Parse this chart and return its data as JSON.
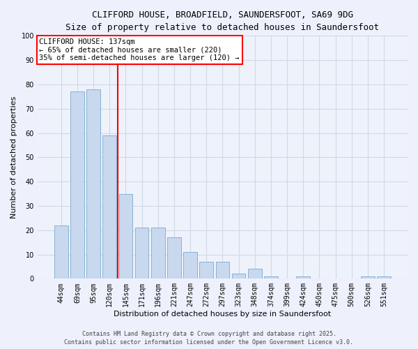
{
  "title1": "CLIFFORD HOUSE, BROADFIELD, SAUNDERSFOOT, SA69 9DG",
  "title2": "Size of property relative to detached houses in Saundersfoot",
  "xlabel": "Distribution of detached houses by size in Saundersfoot",
  "ylabel": "Number of detached properties",
  "categories": [
    "44sqm",
    "69sqm",
    "95sqm",
    "120sqm",
    "145sqm",
    "171sqm",
    "196sqm",
    "221sqm",
    "247sqm",
    "272sqm",
    "297sqm",
    "323sqm",
    "348sqm",
    "374sqm",
    "399sqm",
    "424sqm",
    "450sqm",
    "475sqm",
    "500sqm",
    "526sqm",
    "551sqm"
  ],
  "values": [
    22,
    77,
    78,
    59,
    35,
    21,
    21,
    17,
    11,
    7,
    7,
    2,
    4,
    1,
    0,
    1,
    0,
    0,
    0,
    1,
    1
  ],
  "bar_color": "#c8d8ee",
  "bar_edge_color": "#7aaad0",
  "vline_x": 3.5,
  "vline_color": "red",
  "annotation_title": "CLIFFORD HOUSE: 137sqm",
  "annotation_line1": "← 65% of detached houses are smaller (220)",
  "annotation_line2": "35% of semi-detached houses are larger (120) →",
  "annotation_box_color": "white",
  "annotation_box_edge_color": "red",
  "ylim": [
    0,
    100
  ],
  "yticks": [
    0,
    10,
    20,
    30,
    40,
    50,
    60,
    70,
    80,
    90,
    100
  ],
  "footer_line1": "Contains HM Land Registry data © Crown copyright and database right 2025.",
  "footer_line2": "Contains public sector information licensed under the Open Government Licence v3.0.",
  "background_color": "#eef1fb",
  "plot_bg_color": "#eef2fb",
  "grid_color": "#d0d8e8",
  "title_fontsize": 9,
  "subtitle_fontsize": 8.5,
  "axis_label_fontsize": 8,
  "tick_fontsize": 7,
  "annotation_fontsize": 7.5,
  "footer_fontsize": 6
}
